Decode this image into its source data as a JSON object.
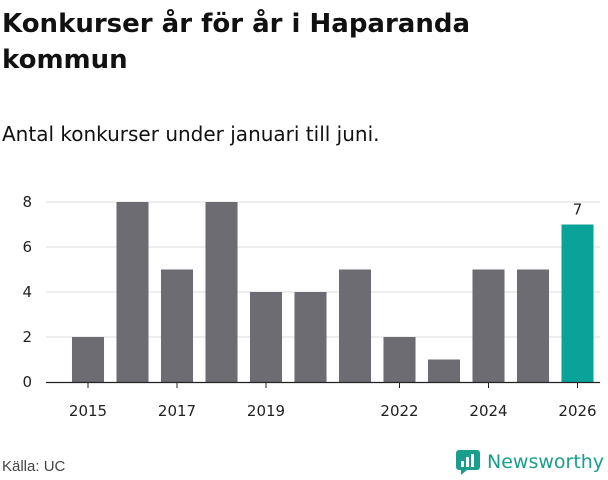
{
  "title": "Konkurser år för år i Haparanda kommun",
  "subtitle": "Antal konkurser under januari till juni.",
  "source": "Källa: UC",
  "logo_text": "Newsworthy",
  "colors": {
    "bar": "#6c6c72",
    "highlight": "#0aa39a",
    "axis": "#222222",
    "grid": "#dddddd"
  },
  "chart_data": {
    "type": "bar",
    "x": [
      2015,
      2016,
      2017,
      2018,
      2019,
      2020,
      2021,
      2022,
      2023,
      2024,
      2025,
      2026
    ],
    "values": [
      2,
      8,
      5,
      8,
      4,
      4,
      5,
      2,
      1,
      5,
      5,
      7
    ],
    "highlight_index": 11,
    "data_labels": [
      {
        "index": 11,
        "text": "7"
      }
    ],
    "x_tick_labels": [
      "2015",
      "2017",
      "2019",
      "2022",
      "2024",
      "2026"
    ],
    "y_ticks": [
      0,
      2,
      4,
      6,
      8
    ],
    "ylim": [
      0,
      8
    ],
    "grid": true,
    "xlabel": "",
    "ylabel": ""
  }
}
